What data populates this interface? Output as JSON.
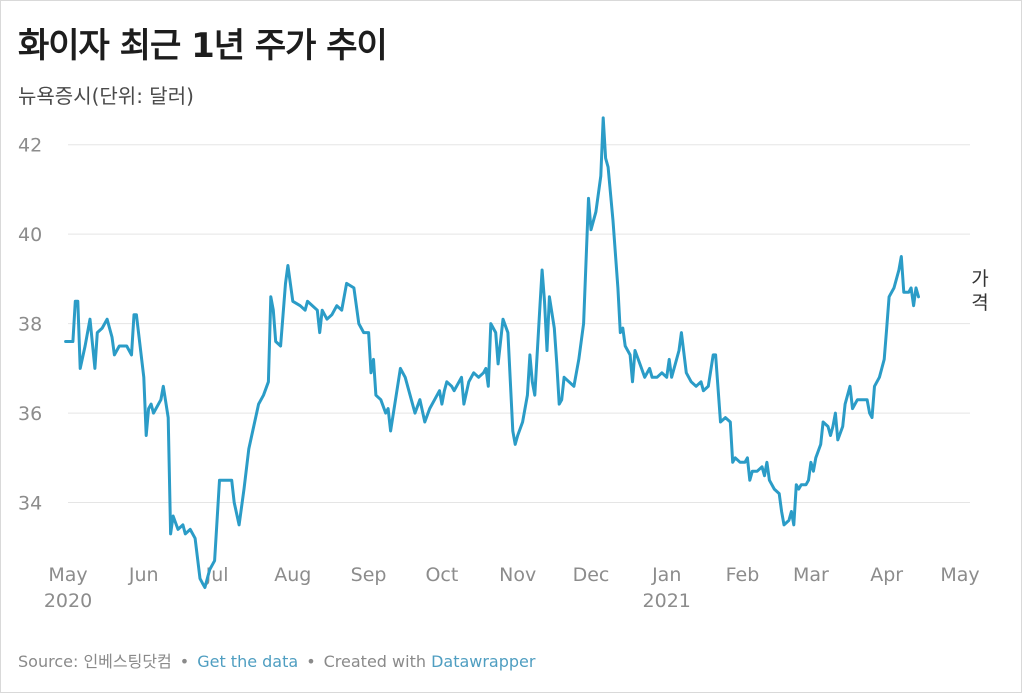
{
  "title": "화이자 최근 1년 주가 추이",
  "subtitle": "뉴욕증시(단위: 달러)",
  "footer": {
    "source_label": "Source: ",
    "source_name": "인베스팅닷컴",
    "separator": "•",
    "get_data": "Get the data",
    "created_with": "Created with ",
    "tool": "Datawrapper"
  },
  "colors": {
    "line": "#2b9cc7",
    "grid": "#e5e5e5",
    "tick_text": "#8c8c8c"
  },
  "chart_data": {
    "type": "line",
    "grid": true,
    "ylim": [
      32,
      43
    ],
    "y_ticks": [
      34,
      36,
      38,
      40,
      42
    ],
    "x_range": [
      "2020-05-01",
      "2021-05-01"
    ],
    "x_ticks": [
      {
        "date": "2020-05-01",
        "label": "May",
        "year": "2020"
      },
      {
        "date": "2020-06-01",
        "label": "Jun"
      },
      {
        "date": "2020-07-01",
        "label": "Jul"
      },
      {
        "date": "2020-08-01",
        "label": "Aug"
      },
      {
        "date": "2020-09-01",
        "label": "Sep"
      },
      {
        "date": "2020-10-01",
        "label": "Oct"
      },
      {
        "date": "2020-11-01",
        "label": "Nov"
      },
      {
        "date": "2020-12-01",
        "label": "Dec"
      },
      {
        "date": "2021-01-01",
        "label": "Jan",
        "year": "2021"
      },
      {
        "date": "2021-02-01",
        "label": "Feb"
      },
      {
        "date": "2021-03-01",
        "label": "Mar"
      },
      {
        "date": "2021-04-01",
        "label": "Apr"
      },
      {
        "date": "2021-05-01",
        "label": "May"
      }
    ],
    "series": [
      {
        "name": "가격",
        "points": [
          [
            "2020-04-30",
            37.6
          ],
          [
            "2020-05-02",
            37.6
          ],
          [
            "2020-05-03",
            37.6
          ],
          [
            "2020-05-04",
            38.5
          ],
          [
            "2020-05-05",
            38.5
          ],
          [
            "2020-05-06",
            37.0
          ],
          [
            "2020-05-08",
            37.5
          ],
          [
            "2020-05-10",
            38.1
          ],
          [
            "2020-05-12",
            37.0
          ],
          [
            "2020-05-13",
            37.8
          ],
          [
            "2020-05-15",
            37.9
          ],
          [
            "2020-05-17",
            38.1
          ],
          [
            "2020-05-19",
            37.7
          ],
          [
            "2020-05-20",
            37.3
          ],
          [
            "2020-05-22",
            37.5
          ],
          [
            "2020-05-25",
            37.5
          ],
          [
            "2020-05-27",
            37.3
          ],
          [
            "2020-05-28",
            38.2
          ],
          [
            "2020-05-29",
            38.2
          ],
          [
            "2020-06-01",
            36.8
          ],
          [
            "2020-06-02",
            35.5
          ],
          [
            "2020-06-03",
            36.1
          ],
          [
            "2020-06-04",
            36.2
          ],
          [
            "2020-06-05",
            36.0
          ],
          [
            "2020-06-08",
            36.3
          ],
          [
            "2020-06-09",
            36.6
          ],
          [
            "2020-06-11",
            35.9
          ],
          [
            "2020-06-12",
            33.3
          ],
          [
            "2020-06-13",
            33.7
          ],
          [
            "2020-06-15",
            33.4
          ],
          [
            "2020-06-17",
            33.5
          ],
          [
            "2020-06-18",
            33.3
          ],
          [
            "2020-06-20",
            33.4
          ],
          [
            "2020-06-22",
            33.2
          ],
          [
            "2020-06-24",
            32.3
          ],
          [
            "2020-06-25",
            32.2
          ],
          [
            "2020-06-26",
            32.1
          ],
          [
            "2020-06-28",
            32.5
          ],
          [
            "2020-06-30",
            32.7
          ],
          [
            "2020-07-02",
            34.5
          ],
          [
            "2020-07-05",
            34.5
          ],
          [
            "2020-07-07",
            34.5
          ],
          [
            "2020-07-08",
            34.0
          ],
          [
            "2020-07-10",
            33.5
          ],
          [
            "2020-07-12",
            34.3
          ],
          [
            "2020-07-14",
            35.2
          ],
          [
            "2020-07-16",
            35.7
          ],
          [
            "2020-07-18",
            36.2
          ],
          [
            "2020-07-20",
            36.4
          ],
          [
            "2020-07-22",
            36.7
          ],
          [
            "2020-07-23",
            38.6
          ],
          [
            "2020-07-24",
            38.3
          ],
          [
            "2020-07-25",
            37.6
          ],
          [
            "2020-07-27",
            37.5
          ],
          [
            "2020-07-29",
            38.9
          ],
          [
            "2020-07-30",
            39.3
          ],
          [
            "2020-08-01",
            38.5
          ],
          [
            "2020-08-04",
            38.4
          ],
          [
            "2020-08-06",
            38.3
          ],
          [
            "2020-08-07",
            38.5
          ],
          [
            "2020-08-09",
            38.4
          ],
          [
            "2020-08-11",
            38.3
          ],
          [
            "2020-08-12",
            37.8
          ],
          [
            "2020-08-13",
            38.3
          ],
          [
            "2020-08-15",
            38.1
          ],
          [
            "2020-08-17",
            38.2
          ],
          [
            "2020-08-19",
            38.4
          ],
          [
            "2020-08-21",
            38.3
          ],
          [
            "2020-08-23",
            38.9
          ],
          [
            "2020-08-26",
            38.8
          ],
          [
            "2020-08-28",
            38.0
          ],
          [
            "2020-08-30",
            37.8
          ],
          [
            "2020-09-01",
            37.8
          ],
          [
            "2020-09-02",
            36.9
          ],
          [
            "2020-09-03",
            37.2
          ],
          [
            "2020-09-04",
            36.4
          ],
          [
            "2020-09-06",
            36.3
          ],
          [
            "2020-09-08",
            36.0
          ],
          [
            "2020-09-09",
            36.1
          ],
          [
            "2020-09-10",
            35.6
          ],
          [
            "2020-09-12",
            36.3
          ],
          [
            "2020-09-14",
            37.0
          ],
          [
            "2020-09-16",
            36.8
          ],
          [
            "2020-09-18",
            36.4
          ],
          [
            "2020-09-20",
            36.0
          ],
          [
            "2020-09-22",
            36.3
          ],
          [
            "2020-09-24",
            35.8
          ],
          [
            "2020-09-26",
            36.1
          ],
          [
            "2020-09-28",
            36.3
          ],
          [
            "2020-09-30",
            36.5
          ],
          [
            "2020-10-01",
            36.2
          ],
          [
            "2020-10-02",
            36.5
          ],
          [
            "2020-10-03",
            36.7
          ],
          [
            "2020-10-05",
            36.6
          ],
          [
            "2020-10-06",
            36.5
          ],
          [
            "2020-10-07",
            36.6
          ],
          [
            "2020-10-09",
            36.8
          ],
          [
            "2020-10-10",
            36.2
          ],
          [
            "2020-10-12",
            36.7
          ],
          [
            "2020-10-14",
            36.9
          ],
          [
            "2020-10-16",
            36.8
          ],
          [
            "2020-10-18",
            36.9
          ],
          [
            "2020-10-19",
            37.0
          ],
          [
            "2020-10-20",
            36.6
          ],
          [
            "2020-10-21",
            38.0
          ],
          [
            "2020-10-23",
            37.8
          ],
          [
            "2020-10-24",
            37.1
          ],
          [
            "2020-10-26",
            38.1
          ],
          [
            "2020-10-28",
            37.8
          ],
          [
            "2020-10-30",
            35.6
          ],
          [
            "2020-10-31",
            35.3
          ],
          [
            "2020-11-01",
            35.5
          ],
          [
            "2020-11-03",
            35.8
          ],
          [
            "2020-11-05",
            36.4
          ],
          [
            "2020-11-06",
            37.3
          ],
          [
            "2020-11-07",
            36.7
          ],
          [
            "2020-11-08",
            36.4
          ],
          [
            "2020-11-10",
            38.3
          ],
          [
            "2020-11-11",
            39.2
          ],
          [
            "2020-11-12",
            38.5
          ],
          [
            "2020-11-13",
            37.4
          ],
          [
            "2020-11-14",
            38.6
          ],
          [
            "2020-11-16",
            37.9
          ],
          [
            "2020-11-17",
            37.1
          ],
          [
            "2020-11-18",
            36.2
          ],
          [
            "2020-11-19",
            36.3
          ],
          [
            "2020-11-20",
            36.8
          ],
          [
            "2020-11-22",
            36.7
          ],
          [
            "2020-11-24",
            36.6
          ],
          [
            "2020-11-26",
            37.2
          ],
          [
            "2020-11-28",
            38.0
          ],
          [
            "2020-11-30",
            40.8
          ],
          [
            "2020-12-01",
            40.1
          ],
          [
            "2020-12-03",
            40.5
          ],
          [
            "2020-12-05",
            41.3
          ],
          [
            "2020-12-06",
            42.6
          ],
          [
            "2020-12-07",
            41.7
          ],
          [
            "2020-12-08",
            41.5
          ],
          [
            "2020-12-10",
            40.3
          ],
          [
            "2020-12-12",
            38.8
          ],
          [
            "2020-12-13",
            37.8
          ],
          [
            "2020-12-14",
            37.9
          ],
          [
            "2020-12-15",
            37.5
          ],
          [
            "2020-12-17",
            37.3
          ],
          [
            "2020-12-18",
            36.7
          ],
          [
            "2020-12-19",
            37.4
          ],
          [
            "2020-12-21",
            37.1
          ],
          [
            "2020-12-23",
            36.8
          ],
          [
            "2020-12-25",
            37.0
          ],
          [
            "2020-12-26",
            36.8
          ],
          [
            "2020-12-28",
            36.8
          ],
          [
            "2020-12-30",
            36.9
          ],
          [
            "2021-01-01",
            36.8
          ],
          [
            "2021-01-02",
            37.2
          ],
          [
            "2021-01-03",
            36.8
          ],
          [
            "2021-01-04",
            37.0
          ],
          [
            "2021-01-06",
            37.4
          ],
          [
            "2021-01-07",
            37.8
          ],
          [
            "2021-01-09",
            36.9
          ],
          [
            "2021-01-11",
            36.7
          ],
          [
            "2021-01-13",
            36.6
          ],
          [
            "2021-01-15",
            36.7
          ],
          [
            "2021-01-16",
            36.5
          ],
          [
            "2021-01-18",
            36.6
          ],
          [
            "2021-01-20",
            37.3
          ],
          [
            "2021-01-21",
            37.3
          ],
          [
            "2021-01-23",
            35.8
          ],
          [
            "2021-01-25",
            35.9
          ],
          [
            "2021-01-27",
            35.8
          ],
          [
            "2021-01-28",
            34.9
          ],
          [
            "2021-01-29",
            35.0
          ],
          [
            "2021-01-31",
            34.9
          ],
          [
            "2021-02-02",
            34.9
          ],
          [
            "2021-02-03",
            35.0
          ],
          [
            "2021-02-04",
            34.5
          ],
          [
            "2021-02-05",
            34.7
          ],
          [
            "2021-02-07",
            34.7
          ],
          [
            "2021-02-09",
            34.8
          ],
          [
            "2021-02-10",
            34.6
          ],
          [
            "2021-02-11",
            34.9
          ],
          [
            "2021-02-12",
            34.5
          ],
          [
            "2021-02-14",
            34.3
          ],
          [
            "2021-02-16",
            34.2
          ],
          [
            "2021-02-17",
            33.8
          ],
          [
            "2021-02-18",
            33.5
          ],
          [
            "2021-02-20",
            33.6
          ],
          [
            "2021-02-21",
            33.8
          ],
          [
            "2021-02-22",
            33.5
          ],
          [
            "2021-02-23",
            34.4
          ],
          [
            "2021-02-24",
            34.3
          ],
          [
            "2021-02-25",
            34.4
          ],
          [
            "2021-02-27",
            34.4
          ],
          [
            "2021-02-28",
            34.5
          ],
          [
            "2021-03-01",
            34.9
          ],
          [
            "2021-03-02",
            34.7
          ],
          [
            "2021-03-03",
            35.0
          ],
          [
            "2021-03-05",
            35.3
          ],
          [
            "2021-03-06",
            35.8
          ],
          [
            "2021-03-08",
            35.7
          ],
          [
            "2021-03-09",
            35.5
          ],
          [
            "2021-03-10",
            35.7
          ],
          [
            "2021-03-11",
            36.0
          ],
          [
            "2021-03-12",
            35.4
          ],
          [
            "2021-03-14",
            35.7
          ],
          [
            "2021-03-15",
            36.2
          ],
          [
            "2021-03-17",
            36.6
          ],
          [
            "2021-03-18",
            36.1
          ],
          [
            "2021-03-20",
            36.3
          ],
          [
            "2021-03-22",
            36.3
          ],
          [
            "2021-03-24",
            36.3
          ],
          [
            "2021-03-25",
            36.0
          ],
          [
            "2021-03-26",
            35.9
          ],
          [
            "2021-03-27",
            36.6
          ],
          [
            "2021-03-29",
            36.8
          ],
          [
            "2021-03-30",
            37.0
          ],
          [
            "2021-03-31",
            37.2
          ],
          [
            "2021-04-01",
            37.9
          ],
          [
            "2021-04-02",
            38.6
          ],
          [
            "2021-04-04",
            38.8
          ],
          [
            "2021-04-06",
            39.2
          ],
          [
            "2021-04-07",
            39.5
          ],
          [
            "2021-04-08",
            38.7
          ],
          [
            "2021-04-10",
            38.7
          ],
          [
            "2021-04-11",
            38.8
          ],
          [
            "2021-04-12",
            38.4
          ],
          [
            "2021-04-13",
            38.8
          ],
          [
            "2021-04-14",
            38.6
          ]
        ]
      }
    ]
  }
}
